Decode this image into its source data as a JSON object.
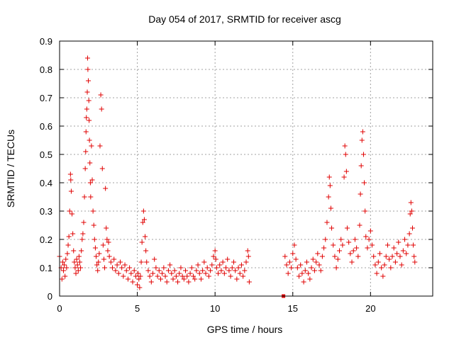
{
  "chart_data": {
    "type": "scatter",
    "title": "Day 054 of 2017, SRMTID for receiver ascg",
    "xlabel": "GPS time / hours",
    "ylabel": "SRMTID / TECUs",
    "xlim": [
      0,
      24
    ],
    "ylim": [
      0,
      0.9
    ],
    "xticks": [
      0,
      5,
      10,
      15,
      20
    ],
    "xtick_labels": [
      "0",
      "5",
      "10",
      "15",
      "20"
    ],
    "yticks": [
      0,
      0.1,
      0.2,
      0.3,
      0.4,
      0.5,
      0.6,
      0.7,
      0.8,
      0.9
    ],
    "ytick_labels": [
      "0",
      "0.1",
      "0.2",
      "0.3",
      "0.4",
      "0.5",
      "0.6",
      "0.7",
      "0.8",
      "0.9"
    ],
    "grid": true,
    "marker": "+",
    "color": "#e00000",
    "series": [
      {
        "name": "SRMTID",
        "points": [
          [
            0.0,
            0.14
          ],
          [
            0.1,
            0.1
          ],
          [
            0.15,
            0.06
          ],
          [
            0.2,
            0.12
          ],
          [
            0.25,
            0.09
          ],
          [
            0.3,
            0.11
          ],
          [
            0.35,
            0.07
          ],
          [
            0.4,
            0.13
          ],
          [
            0.45,
            0.1
          ],
          [
            0.5,
            0.15
          ],
          [
            0.55,
            0.18
          ],
          [
            0.6,
            0.21
          ],
          [
            0.65,
            0.3
          ],
          [
            0.7,
            0.43
          ],
          [
            0.72,
            0.41
          ],
          [
            0.75,
            0.37
          ],
          [
            0.8,
            0.29
          ],
          [
            0.85,
            0.22
          ],
          [
            0.9,
            0.16
          ],
          [
            0.95,
            0.12
          ],
          [
            1.0,
            0.1
          ],
          [
            1.05,
            0.08
          ],
          [
            1.1,
            0.13
          ],
          [
            1.15,
            0.11
          ],
          [
            1.2,
            0.09
          ],
          [
            1.25,
            0.14
          ],
          [
            1.3,
            0.12
          ],
          [
            1.35,
            0.1
          ],
          [
            1.4,
            0.16
          ],
          [
            1.45,
            0.2
          ],
          [
            1.5,
            0.22
          ],
          [
            1.55,
            0.26
          ],
          [
            1.6,
            0.35
          ],
          [
            1.65,
            0.45
          ],
          [
            1.68,
            0.51
          ],
          [
            1.7,
            0.58
          ],
          [
            1.72,
            0.63
          ],
          [
            1.75,
            0.66
          ],
          [
            1.78,
            0.72
          ],
          [
            1.8,
            0.84
          ],
          [
            1.82,
            0.8
          ],
          [
            1.85,
            0.76
          ],
          [
            1.88,
            0.69
          ],
          [
            1.9,
            0.62
          ],
          [
            1.92,
            0.55
          ],
          [
            1.95,
            0.47
          ],
          [
            1.98,
            0.4
          ],
          [
            2.0,
            0.35
          ],
          [
            2.05,
            0.53
          ],
          [
            2.1,
            0.41
          ],
          [
            2.15,
            0.3
          ],
          [
            2.2,
            0.25
          ],
          [
            2.25,
            0.2
          ],
          [
            2.3,
            0.17
          ],
          [
            2.35,
            0.14
          ],
          [
            2.4,
            0.11
          ],
          [
            2.45,
            0.09
          ],
          [
            2.5,
            0.12
          ],
          [
            2.55,
            0.15
          ],
          [
            2.6,
            0.53
          ],
          [
            2.65,
            0.71
          ],
          [
            2.7,
            0.66
          ],
          [
            2.75,
            0.45
          ],
          [
            2.8,
            0.18
          ],
          [
            2.85,
            0.13
          ],
          [
            2.9,
            0.1
          ],
          [
            2.95,
            0.38
          ],
          [
            3.0,
            0.24
          ],
          [
            3.05,
            0.2
          ],
          [
            3.1,
            0.16
          ],
          [
            3.15,
            0.19
          ],
          [
            3.2,
            0.14
          ],
          [
            3.3,
            0.12
          ],
          [
            3.4,
            0.1
          ],
          [
            3.5,
            0.13
          ],
          [
            3.6,
            0.09
          ],
          [
            3.7,
            0.11
          ],
          [
            3.8,
            0.08
          ],
          [
            3.9,
            0.12
          ],
          [
            4.0,
            0.1
          ],
          [
            4.1,
            0.07
          ],
          [
            4.2,
            0.11
          ],
          [
            4.3,
            0.09
          ],
          [
            4.4,
            0.06
          ],
          [
            4.5,
            0.1
          ],
          [
            4.6,
            0.08
          ],
          [
            4.7,
            0.05
          ],
          [
            4.8,
            0.09
          ],
          [
            4.9,
            0.07
          ],
          [
            5.0,
            0.04
          ],
          [
            5.05,
            0.08
          ],
          [
            5.1,
            0.06
          ],
          [
            5.15,
            0.03
          ],
          [
            5.2,
            0.07
          ],
          [
            5.25,
            0.12
          ],
          [
            5.3,
            0.19
          ],
          [
            5.35,
            0.26
          ],
          [
            5.4,
            0.3
          ],
          [
            5.45,
            0.27
          ],
          [
            5.5,
            0.21
          ],
          [
            5.55,
            0.16
          ],
          [
            5.6,
            0.12
          ],
          [
            5.7,
            0.09
          ],
          [
            5.8,
            0.07
          ],
          [
            5.9,
            0.05
          ],
          [
            6.0,
            0.08
          ],
          [
            6.1,
            0.13
          ],
          [
            6.2,
            0.1
          ],
          [
            6.3,
            0.07
          ],
          [
            6.4,
            0.09
          ],
          [
            6.5,
            0.06
          ],
          [
            6.6,
            0.08
          ],
          [
            6.7,
            0.1
          ],
          [
            6.8,
            0.07
          ],
          [
            6.9,
            0.05
          ],
          [
            7.0,
            0.09
          ],
          [
            7.1,
            0.11
          ],
          [
            7.2,
            0.08
          ],
          [
            7.3,
            0.06
          ],
          [
            7.4,
            0.09
          ],
          [
            7.5,
            0.07
          ],
          [
            7.6,
            0.05
          ],
          [
            7.7,
            0.08
          ],
          [
            7.8,
            0.1
          ],
          [
            7.9,
            0.07
          ],
          [
            8.0,
            0.06
          ],
          [
            8.1,
            0.09
          ],
          [
            8.2,
            0.07
          ],
          [
            8.3,
            0.05
          ],
          [
            8.4,
            0.08
          ],
          [
            8.5,
            0.1
          ],
          [
            8.6,
            0.07
          ],
          [
            8.7,
            0.06
          ],
          [
            8.8,
            0.09
          ],
          [
            8.9,
            0.11
          ],
          [
            9.0,
            0.08
          ],
          [
            9.1,
            0.06
          ],
          [
            9.2,
            0.09
          ],
          [
            9.3,
            0.12
          ],
          [
            9.4,
            0.08
          ],
          [
            9.5,
            0.1
          ],
          [
            9.6,
            0.07
          ],
          [
            9.7,
            0.09
          ],
          [
            9.8,
            0.11
          ],
          [
            9.9,
            0.14
          ],
          [
            10.0,
            0.16
          ],
          [
            10.05,
            0.13
          ],
          [
            10.1,
            0.1
          ],
          [
            10.2,
            0.08
          ],
          [
            10.3,
            0.11
          ],
          [
            10.4,
            0.09
          ],
          [
            10.5,
            0.12
          ],
          [
            10.6,
            0.08
          ],
          [
            10.7,
            0.1
          ],
          [
            10.8,
            0.13
          ],
          [
            10.9,
            0.09
          ],
          [
            11.0,
            0.07
          ],
          [
            11.1,
            0.1
          ],
          [
            11.2,
            0.12
          ],
          [
            11.3,
            0.09
          ],
          [
            11.4,
            0.06
          ],
          [
            11.5,
            0.1
          ],
          [
            11.6,
            0.08
          ],
          [
            11.7,
            0.11
          ],
          [
            11.8,
            0.07
          ],
          [
            11.9,
            0.09
          ],
          [
            12.0,
            0.12
          ],
          [
            12.1,
            0.16
          ],
          [
            12.15,
            0.14
          ],
          [
            12.2,
            0.05
          ],
          [
            14.4,
            0.0
          ],
          [
            14.5,
            0.14
          ],
          [
            14.6,
            0.11
          ],
          [
            14.7,
            0.08
          ],
          [
            14.8,
            0.12
          ],
          [
            14.9,
            0.1
          ],
          [
            15.0,
            0.15
          ],
          [
            15.1,
            0.18
          ],
          [
            15.2,
            0.13
          ],
          [
            15.3,
            0.1
          ],
          [
            15.4,
            0.07
          ],
          [
            15.5,
            0.11
          ],
          [
            15.6,
            0.08
          ],
          [
            15.7,
            0.05
          ],
          [
            15.8,
            0.09
          ],
          [
            15.9,
            0.12
          ],
          [
            16.0,
            0.08
          ],
          [
            16.1,
            0.06
          ],
          [
            16.2,
            0.1
          ],
          [
            16.3,
            0.13
          ],
          [
            16.4,
            0.09
          ],
          [
            16.5,
            0.12
          ],
          [
            16.6,
            0.15
          ],
          [
            16.7,
            0.11
          ],
          [
            16.8,
            0.09
          ],
          [
            16.9,
            0.14
          ],
          [
            17.0,
            0.17
          ],
          [
            17.1,
            0.2
          ],
          [
            17.2,
            0.26
          ],
          [
            17.3,
            0.35
          ],
          [
            17.35,
            0.42
          ],
          [
            17.4,
            0.39
          ],
          [
            17.45,
            0.31
          ],
          [
            17.5,
            0.24
          ],
          [
            17.6,
            0.18
          ],
          [
            17.7,
            0.14
          ],
          [
            17.8,
            0.1
          ],
          [
            17.9,
            0.13
          ],
          [
            18.0,
            0.16
          ],
          [
            18.1,
            0.2
          ],
          [
            18.2,
            0.18
          ],
          [
            18.3,
            0.42
          ],
          [
            18.35,
            0.53
          ],
          [
            18.4,
            0.5
          ],
          [
            18.45,
            0.44
          ],
          [
            18.5,
            0.24
          ],
          [
            18.6,
            0.19
          ],
          [
            18.7,
            0.15
          ],
          [
            18.8,
            0.12
          ],
          [
            18.9,
            0.16
          ],
          [
            19.0,
            0.2
          ],
          [
            19.1,
            0.17
          ],
          [
            19.2,
            0.14
          ],
          [
            19.3,
            0.25
          ],
          [
            19.35,
            0.36
          ],
          [
            19.4,
            0.46
          ],
          [
            19.45,
            0.55
          ],
          [
            19.5,
            0.58
          ],
          [
            19.55,
            0.5
          ],
          [
            19.6,
            0.4
          ],
          [
            19.65,
            0.3
          ],
          [
            19.7,
            0.21
          ],
          [
            19.8,
            0.17
          ],
          [
            19.9,
            0.2
          ],
          [
            20.0,
            0.23
          ],
          [
            20.1,
            0.18
          ],
          [
            20.2,
            0.14
          ],
          [
            20.3,
            0.11
          ],
          [
            20.4,
            0.08
          ],
          [
            20.5,
            0.12
          ],
          [
            20.6,
            0.15
          ],
          [
            20.7,
            0.1
          ],
          [
            20.8,
            0.07
          ],
          [
            20.9,
            0.11
          ],
          [
            21.0,
            0.14
          ],
          [
            21.1,
            0.18
          ],
          [
            21.2,
            0.13
          ],
          [
            21.3,
            0.1
          ],
          [
            21.4,
            0.14
          ],
          [
            21.5,
            0.17
          ],
          [
            21.6,
            0.12
          ],
          [
            21.7,
            0.15
          ],
          [
            21.8,
            0.19
          ],
          [
            21.9,
            0.14
          ],
          [
            22.0,
            0.11
          ],
          [
            22.1,
            0.16
          ],
          [
            22.2,
            0.2
          ],
          [
            22.3,
            0.15
          ],
          [
            22.4,
            0.18
          ],
          [
            22.5,
            0.22
          ],
          [
            22.55,
            0.29
          ],
          [
            22.6,
            0.33
          ],
          [
            22.65,
            0.3
          ],
          [
            22.7,
            0.24
          ],
          [
            22.75,
            0.18
          ],
          [
            22.8,
            0.14
          ],
          [
            22.85,
            0.12
          ]
        ]
      }
    ]
  }
}
